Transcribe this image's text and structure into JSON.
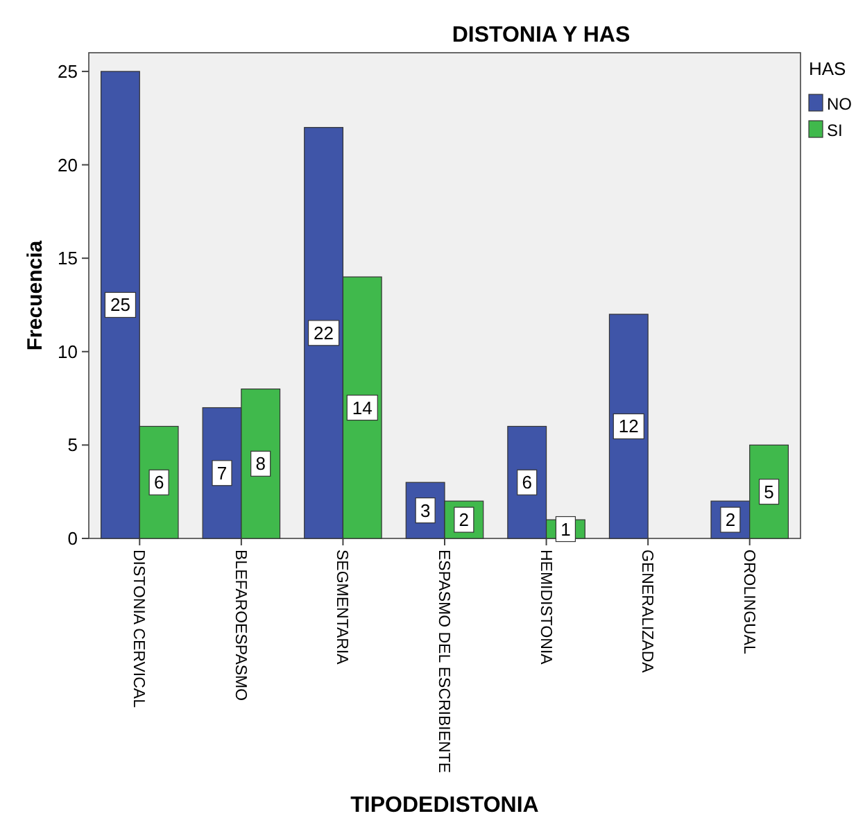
{
  "chart_data": {
    "type": "bar",
    "title": "DISTONIA Y HAS",
    "xlabel": "TIPODEDISTONIA",
    "ylabel": "Frecuencia",
    "legend_title": "HAS",
    "categories": [
      "DISTONIA CERVICAL",
      "BLEFAROESPASMO",
      "SEGMENTARIA",
      "ESPASMO DEL ESCRIBIENTE",
      "HEMIDISTONIA",
      "GENERALIZADA",
      "OROLINGUAL"
    ],
    "series": [
      {
        "name": "NO",
        "color": "#3f55a8",
        "values": [
          25,
          7,
          22,
          3,
          6,
          12,
          2
        ]
      },
      {
        "name": "SI",
        "color": "#40b94c",
        "values": [
          6,
          8,
          14,
          2,
          1,
          null,
          5
        ]
      }
    ],
    "ylim": [
      0,
      26
    ],
    "yticks": [
      0,
      5,
      10,
      15,
      20,
      25
    ],
    "grid": false,
    "legend": "top right",
    "data_labels": true
  }
}
